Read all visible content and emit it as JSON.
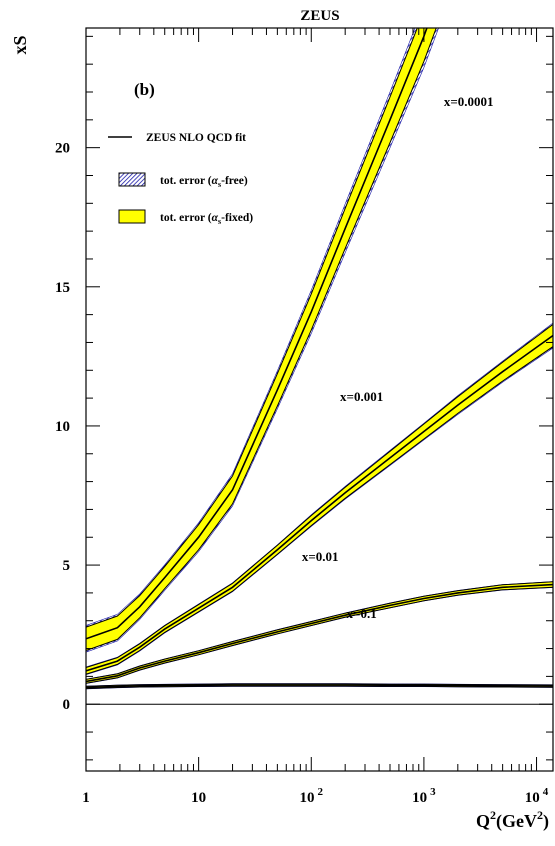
{
  "chart_data": {
    "type": "line",
    "title": "ZEUS",
    "panel_label": "(b)",
    "ylabel": "xS",
    "xlabel": {
      "base": "Q",
      "sup": "2",
      "unit_open": "(GeV",
      "unit_sup": "2",
      "unit_close": ")"
    },
    "xscale": "log",
    "xlim": [
      1,
      14000
    ],
    "ylim": [
      -2.4,
      24.3
    ],
    "yticks": [
      "0",
      "5",
      "10",
      "15",
      "20"
    ],
    "xticks": [
      {
        "base": "1",
        "exp": ""
      },
      {
        "base": "10",
        "exp": ""
      },
      {
        "base": "10",
        "exp": "2"
      },
      {
        "base": "10",
        "exp": "3"
      },
      {
        "base": "10",
        "exp": "4"
      }
    ],
    "legend": {
      "placement": "top-left",
      "fit": "ZEUS NLO QCD fit",
      "free": {
        "prefix": "tot. error (",
        "alpha": "α",
        "sub": "s",
        "suffix": "-free)"
      },
      "fixed": {
        "prefix": "tot. error (",
        "alpha": "α",
        "sub": "s",
        "suffix": "-fixed)"
      }
    },
    "colors": {
      "band_fixed": "#ffff00",
      "band_free": "#1a1aa8",
      "line": "#000000"
    },
    "series": [
      {
        "name": "x=0.0001",
        "x": [
          1,
          1.9,
          3,
          5,
          10,
          20,
          50,
          100,
          200,
          500,
          1000,
          2000
        ],
        "y": [
          2.35,
          2.75,
          3.5,
          4.55,
          6.0,
          7.7,
          11.3,
          14.1,
          17.1,
          21.0,
          24.0,
          27.4
        ],
        "err_fixed": [
          0.42,
          0.42,
          0.4,
          0.4,
          0.45,
          0.5,
          0.58,
          0.65,
          0.72,
          0.82,
          0.9,
          1.0
        ],
        "err_free": [
          0.48,
          0.48,
          0.46,
          0.46,
          0.52,
          0.58,
          0.68,
          0.78,
          0.88,
          1.0,
          1.12,
          1.25
        ]
      },
      {
        "name": "x=0.001",
        "x": [
          1,
          1.9,
          3,
          5,
          10,
          20,
          50,
          100,
          200,
          500,
          1000,
          2000,
          5000,
          14000
        ],
        "y": [
          1.2,
          1.55,
          2.05,
          2.7,
          3.45,
          4.2,
          5.55,
          6.6,
          7.6,
          8.85,
          9.8,
          10.75,
          11.95,
          13.25
        ],
        "err_fixed": [
          0.12,
          0.12,
          0.12,
          0.12,
          0.13,
          0.14,
          0.16,
          0.18,
          0.2,
          0.24,
          0.27,
          0.3,
          0.34,
          0.4
        ],
        "err_free": [
          0.14,
          0.14,
          0.14,
          0.14,
          0.15,
          0.16,
          0.18,
          0.21,
          0.23,
          0.27,
          0.3,
          0.34,
          0.38,
          0.45
        ]
      },
      {
        "name": "x=0.01",
        "x": [
          1,
          1.9,
          3,
          5,
          10,
          20,
          50,
          100,
          200,
          500,
          1000,
          2000,
          5000,
          14000
        ],
        "y": [
          0.82,
          1.02,
          1.3,
          1.55,
          1.85,
          2.18,
          2.6,
          2.9,
          3.2,
          3.55,
          3.8,
          4.0,
          4.2,
          4.3
        ],
        "err_fixed": [
          0.07,
          0.07,
          0.07,
          0.07,
          0.07,
          0.07,
          0.07,
          0.07,
          0.07,
          0.08,
          0.08,
          0.08,
          0.09,
          0.1
        ],
        "err_free": [
          0.08,
          0.08,
          0.08,
          0.08,
          0.08,
          0.08,
          0.08,
          0.08,
          0.08,
          0.09,
          0.09,
          0.09,
          0.1,
          0.11
        ]
      },
      {
        "name": "x=0.1",
        "x": [
          1,
          1.9,
          3,
          5,
          10,
          20,
          50,
          100,
          200,
          500,
          1000,
          2000,
          5000,
          14000
        ],
        "y": [
          0.6,
          0.64,
          0.66,
          0.67,
          0.68,
          0.69,
          0.69,
          0.69,
          0.69,
          0.68,
          0.68,
          0.67,
          0.66,
          0.65
        ],
        "err_fixed": [
          0.04,
          0.04,
          0.04,
          0.04,
          0.04,
          0.04,
          0.04,
          0.04,
          0.04,
          0.04,
          0.04,
          0.04,
          0.04,
          0.04
        ],
        "err_free": [
          0.05,
          0.05,
          0.05,
          0.05,
          0.05,
          0.05,
          0.05,
          0.05,
          0.05,
          0.05,
          0.05,
          0.05,
          0.05,
          0.05
        ]
      }
    ]
  }
}
